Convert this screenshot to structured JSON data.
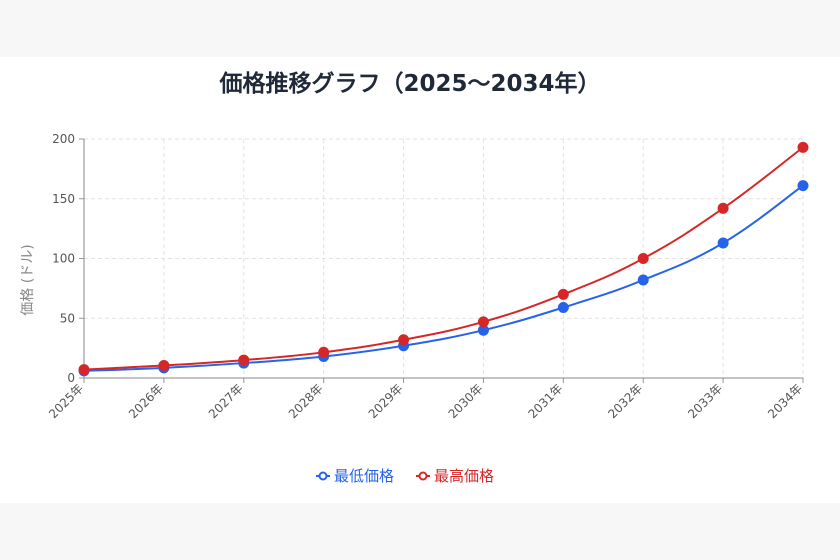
{
  "chart_data": {
    "type": "line",
    "title": "価格推移グラフ（2025〜2034年）",
    "xlabel": "",
    "ylabel": "価格 (ドル)",
    "categories": [
      "2025年",
      "2026年",
      "2027年",
      "2028年",
      "2029年",
      "2030年",
      "2031年",
      "2032年",
      "2033年",
      "2034年"
    ],
    "ylim": [
      0,
      200
    ],
    "yticks": [
      0,
      50,
      100,
      150,
      200
    ],
    "grid": true,
    "legend_position": "bottom",
    "series": [
      {
        "name": "最低価格",
        "color": "#2563eb",
        "values": [
          6,
          8.5,
          12.5,
          18,
          27,
          40,
          59,
          82,
          113,
          161
        ]
      },
      {
        "name": "最高価格",
        "color": "#d62728",
        "values": [
          7,
          10.5,
          15,
          21.5,
          32,
          47,
          70,
          100,
          142,
          193
        ]
      }
    ]
  }
}
